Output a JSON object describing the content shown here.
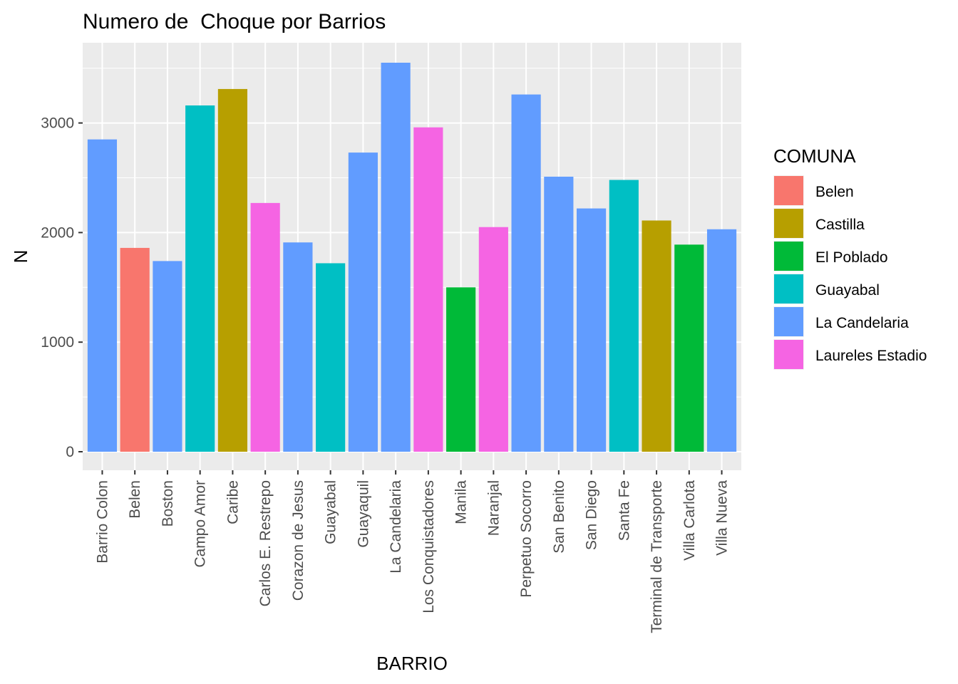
{
  "chart_data": {
    "type": "bar",
    "title": "Numero de  Choque por Barrios",
    "xlabel": "BARRIO",
    "ylabel": "N",
    "ylim": [
      0,
      3700
    ],
    "yticks": [
      0,
      1000,
      2000,
      3000
    ],
    "grid": true,
    "categories": [
      "Barrio Colon",
      "Belen",
      "Boston",
      "Campo Amor",
      "Caribe",
      "Carlos E. Restrepo",
      "Corazon de Jesus",
      "Guayabal",
      "Guayaquil",
      "La Candelaria",
      "Los Conquistadores",
      "Manila",
      "Naranjal",
      "Perpetuo Socorro",
      "San Benito",
      "San Diego",
      "Santa Fe",
      "Terminal de Transporte",
      "Villa Carlota",
      "Villa Nueva"
    ],
    "values": [
      2850,
      1860,
      1740,
      3160,
      3310,
      2270,
      1910,
      1720,
      2730,
      3550,
      2960,
      1500,
      2050,
      3260,
      2510,
      2220,
      2480,
      2110,
      1890,
      2030
    ],
    "fill_group": [
      "La Candelaria",
      "Belen",
      "La Candelaria",
      "Guayabal",
      "Castilla",
      "Laureles Estadio",
      "La Candelaria",
      "Guayabal",
      "La Candelaria",
      "La Candelaria",
      "Laureles Estadio",
      "El Poblado",
      "Laureles Estadio",
      "La Candelaria",
      "La Candelaria",
      "La Candelaria",
      "Guayabal",
      "Castilla",
      "El Poblado",
      "La Candelaria"
    ],
    "legend": {
      "title": "COMUNA",
      "position": "right",
      "entries": [
        {
          "label": "Belen",
          "color": "#F8766D"
        },
        {
          "label": "Castilla",
          "color": "#B79F00"
        },
        {
          "label": "El Poblado",
          "color": "#00BA38"
        },
        {
          "label": "Guayabal",
          "color": "#00BFC4"
        },
        {
          "label": "La Candelaria",
          "color": "#619CFF"
        },
        {
          "label": "Laureles Estadio",
          "color": "#F564E3"
        }
      ]
    }
  }
}
